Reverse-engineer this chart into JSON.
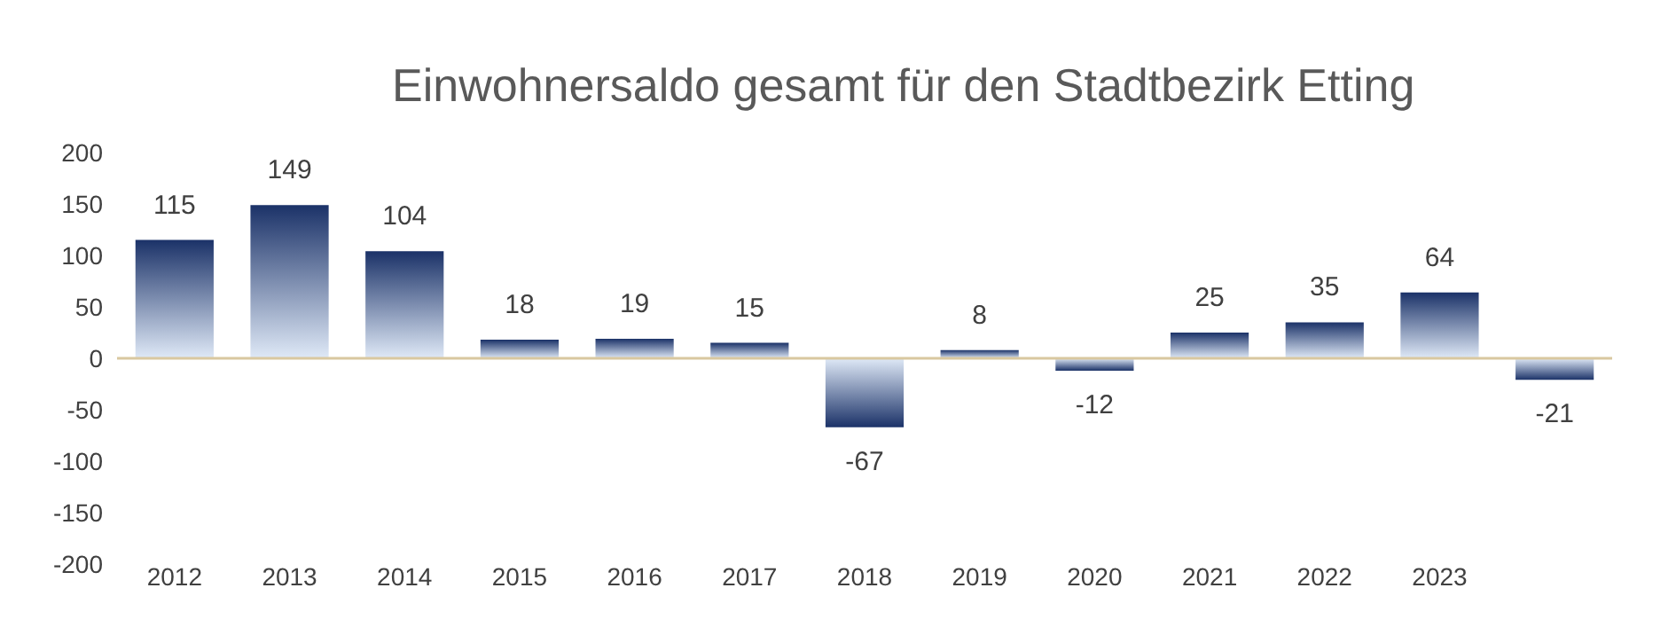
{
  "chart_data": {
    "type": "bar",
    "title": "Einwohnersaldo gesamt für den Stadtbezirk Etting",
    "categories": [
      "2012",
      "2013",
      "2014",
      "2015",
      "2016",
      "2017",
      "2018",
      "2019",
      "2020",
      "2021",
      "2022",
      "2023",
      null
    ],
    "values": [
      115,
      149,
      104,
      18,
      19,
      15,
      -67,
      8,
      -12,
      25,
      35,
      64,
      -21
    ],
    "color": "#1b3268",
    "ylim": [
      -200,
      200
    ],
    "yticks": [
      -200,
      -150,
      -100,
      -50,
      0,
      50,
      100,
      150,
      200
    ],
    "ref_lines": [
      {
        "axis": "y",
        "value": 0,
        "color": "#d9c8a0"
      }
    ],
    "data_labels": true
  }
}
